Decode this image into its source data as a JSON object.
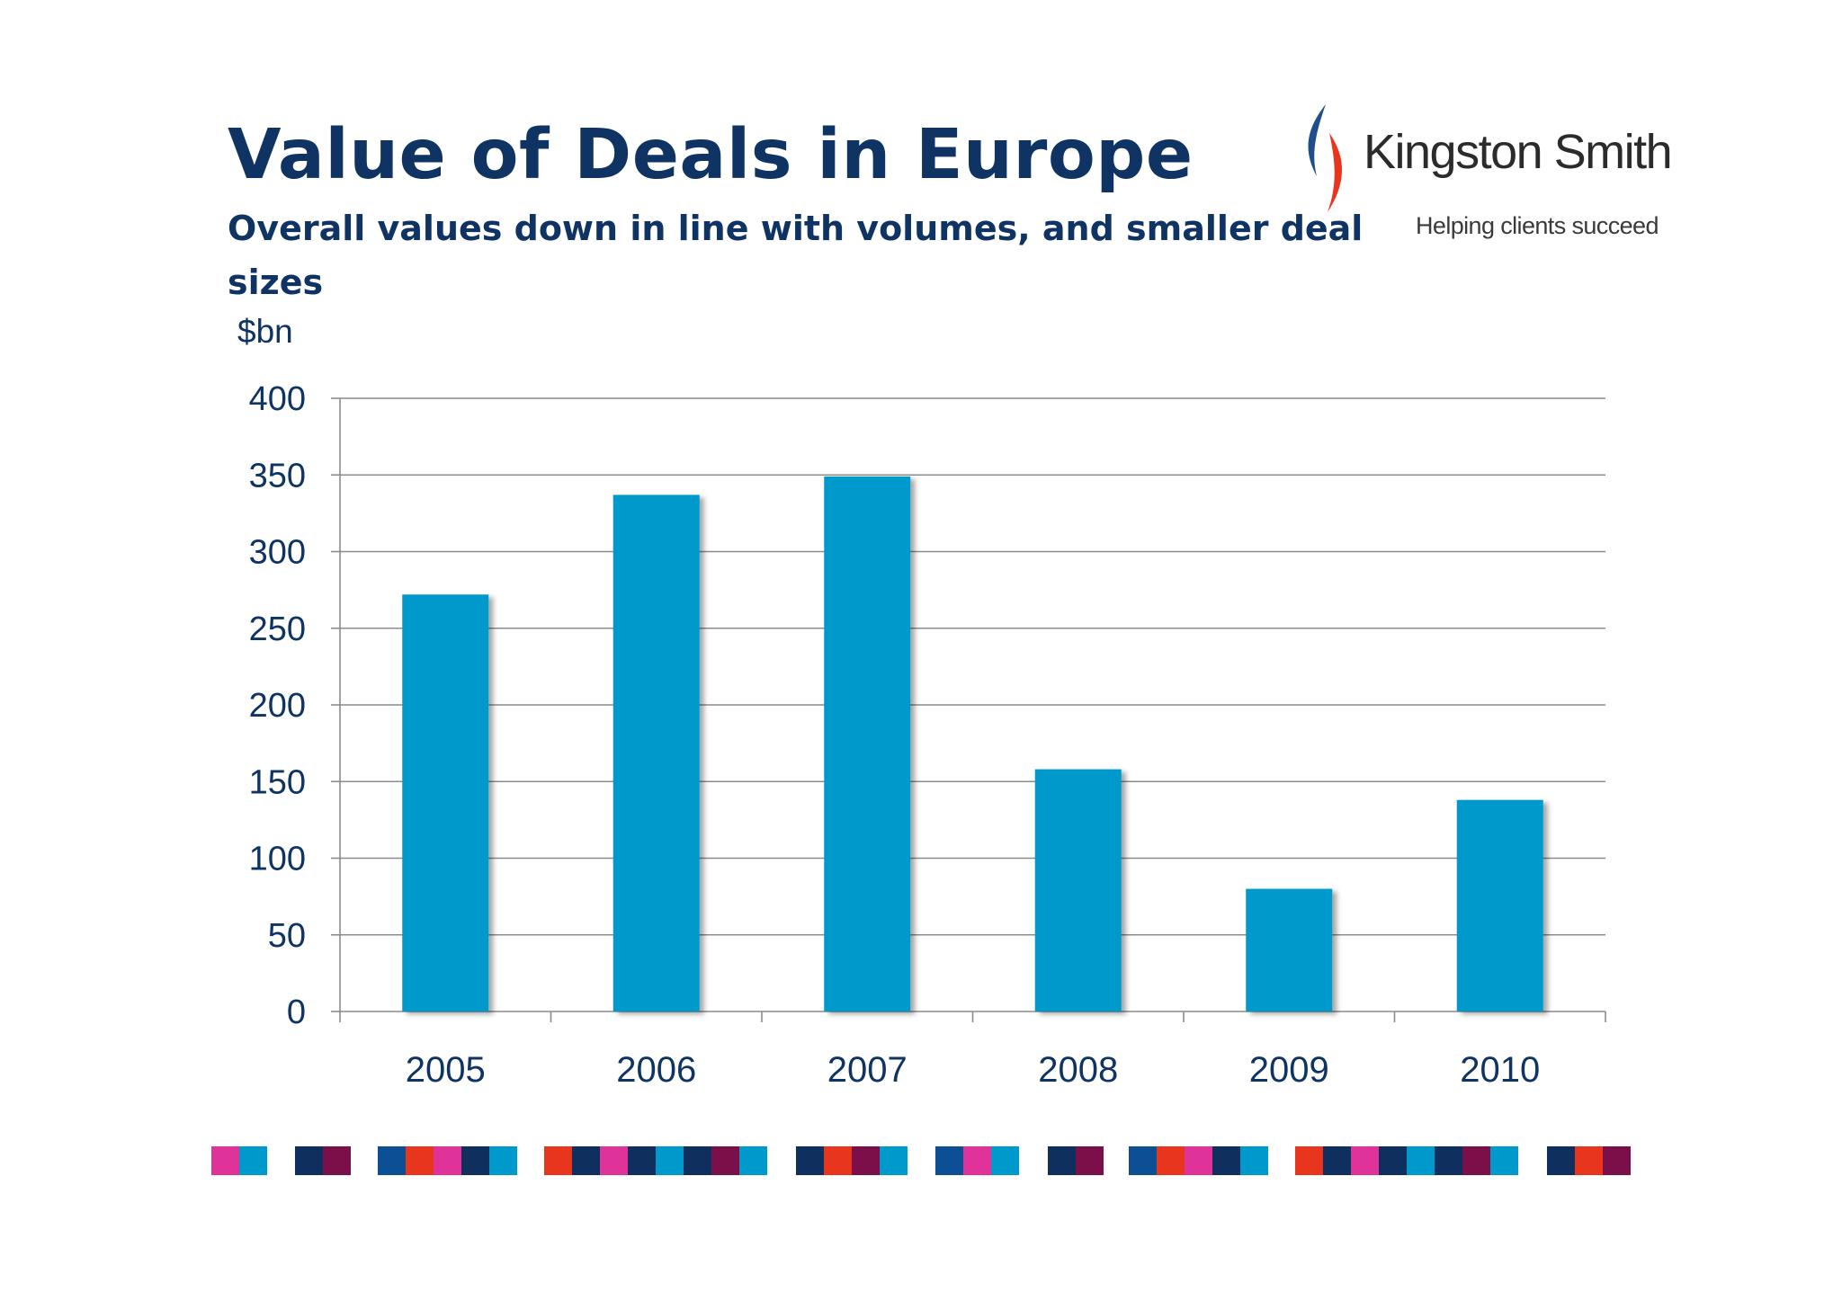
{
  "title": "Value of Deals in Europe",
  "subtitle": "Overall values down in line with volumes, and smaller deal sizes",
  "logo": {
    "name": "Kingston Smith",
    "tagline": "Helping clients succeed"
  },
  "colors": {
    "title": "#0f3464",
    "bar": "#0099cc",
    "gridline": "#8c8c8c",
    "logo_blue": "#1f4e8c",
    "logo_red": "#e8351e"
  },
  "decorative_strip": {
    "colors": [
      "#e0339a",
      "#0099cc",
      "#0f2f5e",
      "#7a0f4a",
      "#0d4f94",
      "#e8351e"
    ]
  },
  "chart_data": {
    "type": "bar",
    "title": "",
    "ylabel": "$bn",
    "xlabel": "",
    "categories": [
      "2005",
      "2006",
      "2007",
      "2008",
      "2009",
      "2010"
    ],
    "values": [
      272,
      337,
      349,
      158,
      80,
      138
    ],
    "ylim": [
      0,
      400
    ],
    "yticks": [
      0,
      50,
      100,
      150,
      200,
      250,
      300,
      350,
      400
    ],
    "grid": true,
    "legend": "none"
  }
}
